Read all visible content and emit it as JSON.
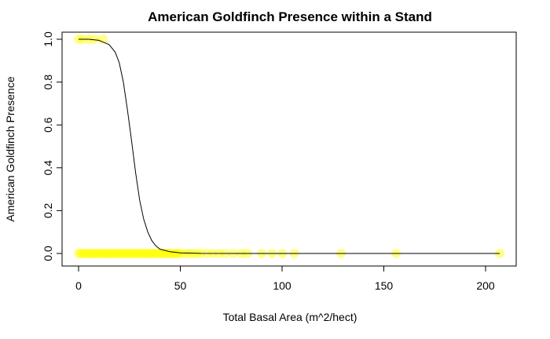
{
  "chart_data": {
    "type": "scatter",
    "title": "American Goldfinch Presence within a Stand",
    "xlabel": "Total Basal Area (m^2/hect)",
    "ylabel": "American Goldfinch Presence",
    "xlim": [
      0,
      207
    ],
    "ylim": [
      0,
      1
    ],
    "xticks": [
      0,
      50,
      100,
      150,
      200
    ],
    "yticks": [
      0.0,
      0.2,
      0.4,
      0.6,
      0.8,
      1.0
    ],
    "xtick_labels": [
      "0",
      "50",
      "100",
      "150",
      "200"
    ],
    "ytick_labels": [
      "0.0",
      "0.2",
      "0.4",
      "0.6",
      "0.8",
      "1.0"
    ],
    "point_color": "#ffff00",
    "grid": false,
    "series": [
      {
        "kind": "points",
        "x": [
          0,
          1,
          2,
          3,
          4,
          5,
          6,
          7,
          8,
          9,
          10,
          11,
          12,
          13,
          14,
          15,
          16,
          17,
          18,
          19,
          20,
          21,
          22,
          23,
          24,
          25,
          26,
          27,
          28,
          29,
          30,
          31,
          32,
          33,
          34,
          35,
          36,
          37,
          38,
          39,
          40,
          41,
          42,
          43,
          44,
          45,
          46,
          47,
          48,
          49,
          50,
          52,
          54,
          56,
          58,
          60,
          63,
          66,
          69,
          72,
          76,
          80,
          83,
          90,
          95,
          100,
          106,
          129,
          156,
          207,
          0,
          2,
          5,
          8,
          12
        ],
        "y": [
          0,
          0,
          0,
          0,
          0,
          0,
          0,
          0,
          0,
          0,
          0,
          0,
          0,
          0,
          0,
          0,
          0,
          0,
          0,
          0,
          0,
          0,
          0,
          0,
          0,
          0,
          0,
          0,
          0,
          0,
          0,
          0,
          0,
          0,
          0,
          0,
          0,
          0,
          0,
          0,
          0,
          0,
          0,
          0,
          0,
          0,
          0,
          0,
          0,
          0,
          0,
          0,
          0,
          0,
          0,
          0,
          0,
          0,
          0,
          0,
          0,
          0,
          0,
          0,
          0,
          0,
          0,
          0,
          0,
          0,
          1,
          1,
          1,
          1,
          1
        ]
      },
      {
        "kind": "fitted-curve",
        "x": [
          0,
          5,
          10,
          15,
          18,
          20,
          22,
          24,
          26,
          28,
          30,
          32,
          34,
          36,
          38,
          40,
          45,
          50,
          60,
          80,
          100,
          150,
          207
        ],
        "y": [
          1.0,
          1.0,
          0.995,
          0.975,
          0.94,
          0.89,
          0.8,
          0.67,
          0.53,
          0.38,
          0.25,
          0.16,
          0.1,
          0.06,
          0.035,
          0.02,
          0.008,
          0.003,
          0.0005,
          0.0,
          0.0,
          0.0,
          0.0
        ]
      }
    ]
  }
}
